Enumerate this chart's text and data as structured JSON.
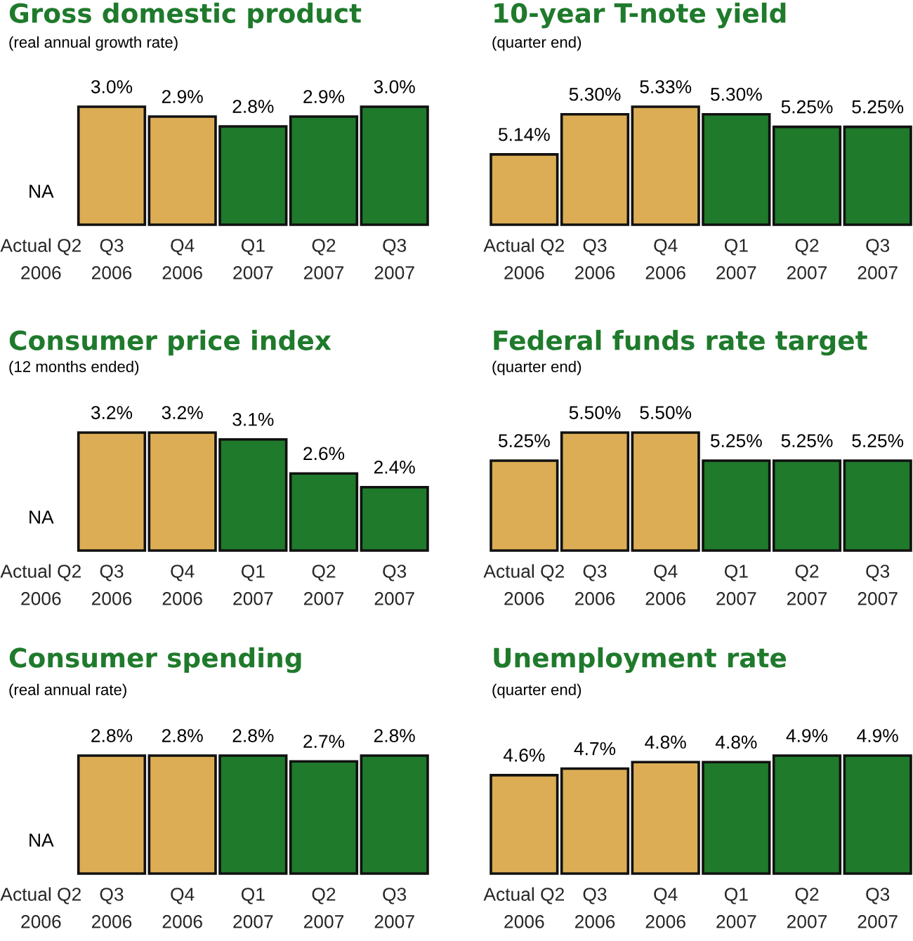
{
  "chart_data": [
    {
      "type": "bar",
      "title": "Gross domestic product",
      "subtitle": "(real annual growth rate)",
      "categories": [
        "Actual Q2\n2006",
        "Q3\n2006",
        "Q4\n2006",
        "Q1\n2007",
        "Q2\n2007",
        "Q3\n2007"
      ],
      "values": [
        null,
        3.0,
        2.9,
        2.8,
        2.9,
        3.0
      ],
      "value_labels": [
        "NA",
        "3.0%",
        "2.9%",
        "2.8%",
        "2.9%",
        "3.0%"
      ],
      "colors": [
        null,
        "#dcad55",
        "#dcad55",
        "#1f7a2b",
        "#1f7a2b",
        "#1f7a2b"
      ],
      "ylim": [
        1.8,
        3.0
      ]
    },
    {
      "type": "bar",
      "title": "10-year T-note yield",
      "subtitle": "(quarter end)",
      "categories": [
        "Actual Q2\n2006",
        "Q3\n2006",
        "Q4\n2006",
        "Q1\n2007",
        "Q2\n2007",
        "Q3\n2007"
      ],
      "values": [
        5.14,
        5.3,
        5.33,
        5.3,
        5.25,
        5.25
      ],
      "value_labels": [
        "5.14%",
        "5.30%",
        "5.33%",
        "5.30%",
        "5.25%",
        "5.25%"
      ],
      "colors": [
        "#dcad55",
        "#dcad55",
        "#dcad55",
        "#1f7a2b",
        "#1f7a2b",
        "#1f7a2b"
      ],
      "ylim": [
        4.86,
        5.33
      ]
    },
    {
      "type": "bar",
      "title": "Consumer price index",
      "subtitle": "(12 months ended)",
      "categories": [
        "Actual Q2\n2006",
        "Q3\n2006",
        "Q4\n2006",
        "Q1\n2007",
        "Q2\n2007",
        "Q3\n2007"
      ],
      "values": [
        null,
        3.2,
        3.2,
        3.1,
        2.6,
        2.4
      ],
      "value_labels": [
        "NA",
        "3.2%",
        "3.2%",
        "3.1%",
        "2.6%",
        "2.4%"
      ],
      "colors": [
        null,
        "#dcad55",
        "#dcad55",
        "#1f7a2b",
        "#1f7a2b",
        "#1f7a2b"
      ],
      "ylim": [
        1.47,
        3.2
      ]
    },
    {
      "type": "bar",
      "title": "Federal funds rate target",
      "subtitle": "(quarter end)",
      "categories": [
        "Actual Q2\n2006",
        "Q3\n2006",
        "Q4\n2006",
        "Q1\n2007",
        "Q2\n2007",
        "Q3\n2007"
      ],
      "values": [
        5.25,
        5.5,
        5.5,
        5.25,
        5.25,
        5.25
      ],
      "value_labels": [
        "5.25%",
        "5.50%",
        "5.50%",
        "5.25%",
        "5.25%",
        "5.25%"
      ],
      "colors": [
        "#dcad55",
        "#dcad55",
        "#dcad55",
        "#1f7a2b",
        "#1f7a2b",
        "#1f7a2b"
      ],
      "ylim": [
        4.45,
        5.5
      ]
    },
    {
      "type": "bar",
      "title": "Consumer spending",
      "subtitle": "(real annual rate)",
      "categories": [
        "Actual Q2\n2006",
        "Q3\n2006",
        "Q4\n2006",
        "Q1\n2007",
        "Q2\n2007",
        "Q3\n2007"
      ],
      "values": [
        null,
        2.8,
        2.8,
        2.8,
        2.7,
        2.8
      ],
      "value_labels": [
        "NA",
        "2.8%",
        "2.8%",
        "2.8%",
        "2.7%",
        "2.8%"
      ],
      "colors": [
        null,
        "#dcad55",
        "#dcad55",
        "#1f7a2b",
        "#1f7a2b",
        "#1f7a2b"
      ],
      "ylim": [
        0.75,
        2.8
      ]
    },
    {
      "type": "bar",
      "title": "Unemployment rate",
      "subtitle": "(quarter end)",
      "categories": [
        "Actual Q2\n2006",
        "Q3\n2006",
        "Q4\n2006",
        "Q1\n2007",
        "Q2\n2007",
        "Q3\n2007"
      ],
      "values": [
        4.6,
        4.7,
        4.8,
        4.8,
        4.9,
        4.9
      ],
      "value_labels": [
        "4.6%",
        "4.7%",
        "4.8%",
        "4.8%",
        "4.9%",
        "4.9%"
      ],
      "colors": [
        "#dcad55",
        "#dcad55",
        "#dcad55",
        "#1f7a2b",
        "#1f7a2b",
        "#1f7a2b"
      ],
      "ylim": [
        3.09,
        4.9
      ]
    }
  ]
}
